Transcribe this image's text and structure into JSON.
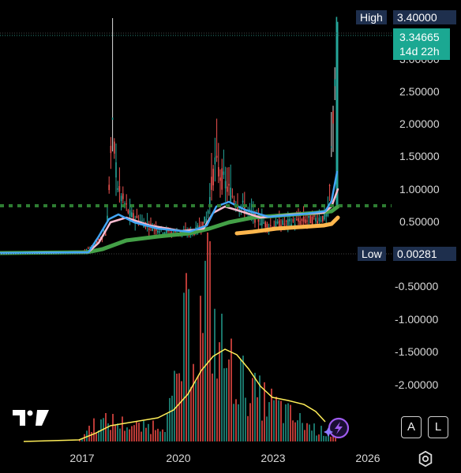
{
  "price_scale": {
    "high_label": "High",
    "high_value": "3.40000",
    "current_value": "3.34665",
    "countdown": "14d 22h",
    "low_label": "Low",
    "low_value": "0.00281",
    "tick_labels": [
      "3.00000",
      "2.50000",
      "2.00000",
      "1.50000",
      "1.00000",
      "0.50000"
    ],
    "sub_tick_labels": [
      "-0.50000",
      "-1.00000",
      "-1.50000",
      "-2.00000"
    ]
  },
  "time_axis": {
    "labels": [
      "2017",
      "2020",
      "2023",
      "2026"
    ]
  },
  "buttons": {
    "auto": "A",
    "log": "L"
  },
  "icons": {
    "settings": "gear-icon",
    "logo": "tradingview-logo",
    "flash": "lightning-icon"
  },
  "colors": {
    "up": "#26a69a",
    "down": "#ef5350",
    "ma_fast": "#42a5f5",
    "ma_pink": "#f8bbd0",
    "ma_green": "#43a047",
    "ma_orange": "#ffb74d",
    "volume_ma": "#ffee58",
    "level_line": "#2e7d32"
  },
  "chart_data": {
    "type": "candlestick",
    "x": [
      "2014",
      "2015",
      "2016",
      "2017",
      "2017.5",
      "2018",
      "2018.25",
      "2018.5",
      "2019",
      "2019.5",
      "2020",
      "2020.5",
      "2021",
      "2021.25",
      "2021.5",
      "2021.75",
      "2022",
      "2022.5",
      "2023",
      "2023.5",
      "2024",
      "2024.5",
      "2024.75",
      "2024.9"
    ],
    "close": [
      0.003,
      0.004,
      0.006,
      0.02,
      0.25,
      2.3,
      0.9,
      0.5,
      0.35,
      0.3,
      0.25,
      0.3,
      0.5,
      1.6,
      1.0,
      0.9,
      0.7,
      0.4,
      0.45,
      0.5,
      0.55,
      0.6,
      1.8,
      3.34665
    ],
    "high": [
      0.004,
      0.006,
      0.01,
      0.05,
      0.4,
      3.4,
      1.6,
      0.8,
      0.5,
      0.45,
      0.35,
      0.45,
      0.7,
      1.95,
      1.4,
      1.2,
      0.9,
      0.6,
      0.65,
      0.7,
      0.7,
      0.75,
      2.9,
      3.4
    ],
    "y_axis": {
      "ylim": [
        0,
        3.4
      ]
    },
    "level_line": 0.72
  }
}
